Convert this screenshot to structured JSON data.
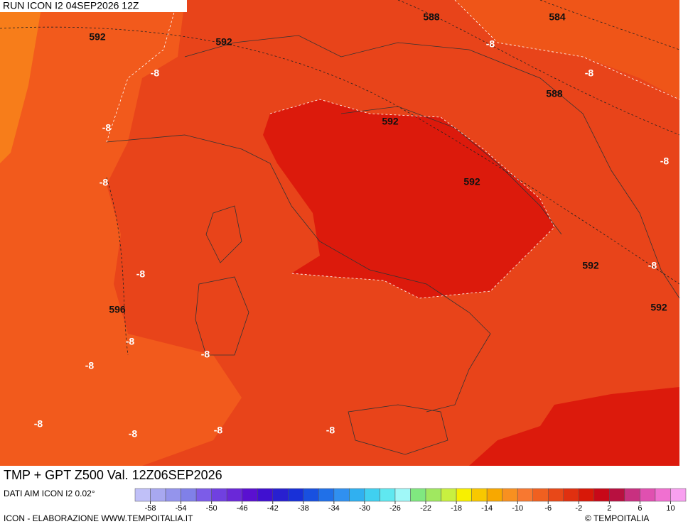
{
  "header": {
    "run": "RUN ICON I2 04SEP2026 12Z"
  },
  "map": {
    "labels": [
      "592",
      "592",
      "588",
      "584",
      "-8",
      "-8",
      "-8",
      "588",
      "592",
      "-8",
      "-8",
      "-8",
      "592",
      "592",
      "-8",
      "-8",
      "596",
      "592",
      "-8",
      "-8",
      "-8",
      "-8",
      "-8",
      "-8",
      "-8"
    ]
  },
  "footer": {
    "title": "TMP + GPT Z500 Val. 12Z06SEP2026",
    "data_source": "DATI AIM ICON I2 0.02°",
    "credit": "ICON - ELABORAZIONE WWW.TEMPOITALIA.IT",
    "logo": "© TEMPOITALIA"
  },
  "colorbar": {
    "range": [
      -60,
      12
    ],
    "ticks": [
      -58,
      -54,
      -50,
      -46,
      -42,
      -38,
      -34,
      -30,
      -26,
      -22,
      -18,
      -14,
      -10,
      -6,
      -2,
      2,
      6,
      10
    ],
    "colors": [
      "#c0c0f8",
      "#a8a8f0",
      "#9494ec",
      "#8080e8",
      "#7c5ce8",
      "#7040e0",
      "#6a28d8",
      "#5a10d0",
      "#4010d0",
      "#2820d0",
      "#1830d8",
      "#1850e0",
      "#2070e8",
      "#3090f0",
      "#30b0f0",
      "#40d0f0",
      "#60e8f0",
      "#a0f8f8",
      "#80e880",
      "#a0e860",
      "#c8f040",
      "#f8f000",
      "#f8c800",
      "#f8a800",
      "#f89020",
      "#f87830",
      "#f06020",
      "#e84818",
      "#e03010",
      "#d81808",
      "#c80818",
      "#b81040",
      "#c83080",
      "#e050b0",
      "#f070d0",
      "#f8a0f0"
    ]
  }
}
